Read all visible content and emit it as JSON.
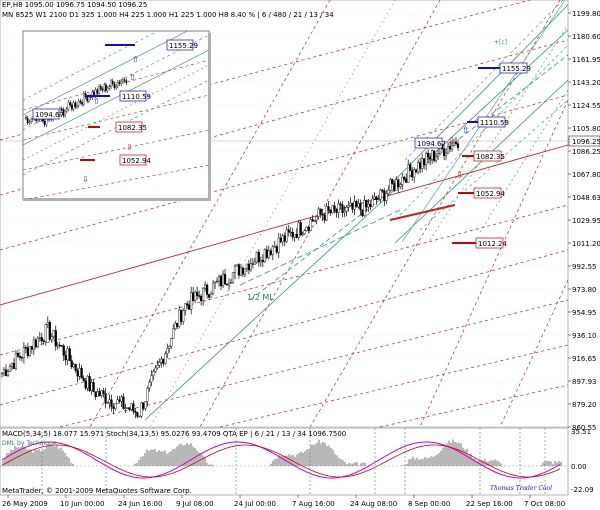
{
  "header": {
    "line1": "EP,H8  1095.00  1096.75  1094.50  1096.25",
    "line2": "MN  8525    W1  2100    D1  325    1.000    H4  225    1.000    H1  225    1.000    H8  8.40 %   |  6 / 480 / 21 / 13 / 34"
  },
  "price_axis": {
    "labels": [
      "1199.80",
      "1180.60",
      "1161.95",
      "1143.20",
      "1124.55",
      "1105.80",
      "1086.25",
      "1067.80",
      "1048.63",
      "1029.95",
      "1011.20",
      "992.55",
      "973.80",
      "954.95",
      "936.10",
      "916.65",
      "897.93",
      "879.20",
      "860.55"
    ],
    "current_price": "1096.25"
  },
  "time_axis": {
    "labels": [
      "26 May 2009",
      "10 Jun 00:00",
      "24 Jun 16:00",
      "9 Jul 08:00",
      "24 Jul 00:00",
      "7 Aug 16:00",
      "24 Aug 08:00",
      "8 Sep 00:00",
      "22 Sep 16:00",
      "7 Oct 08:00"
    ]
  },
  "price_boxes": [
    {
      "text": "1155.29",
      "color": "#1010c0"
    },
    {
      "text": "1110.59",
      "color": "#1010c0"
    },
    {
      "text": "1094.67",
      "color": "#1010c0"
    },
    {
      "text": "1082.35",
      "color": "#d00000"
    },
    {
      "text": "1052.94",
      "color": "#d00000"
    },
    {
      "text": "1012.24",
      "color": "#d00000"
    }
  ],
  "inset_boxes": [
    {
      "text": "1155.29",
      "color": "#1010c0"
    },
    {
      "text": "1110.59",
      "color": "#1010c0"
    },
    {
      "text": "1094.67",
      "color": "#1010c0"
    },
    {
      "text": "1082.35",
      "color": "#d00000"
    },
    {
      "text": "1052.94",
      "color": "#d00000"
    }
  ],
  "annotations": {
    "median_line": "1/2 ML",
    "top_label": "+[c]"
  },
  "indicator": {
    "header": "MACD(5,34,5) 18.077 15.971    Stoch(34,13,5) 95.0276 93.4709    QTA EP    | 6 / 21 / 13 / 34 1096.7500",
    "subheader": "DML  by  Technique",
    "axis_labels": [
      "35.51",
      "0.00",
      "-22.09"
    ],
    "copyright": "MetaTrader, © 2001-2009 MetaQuotes Software Corp.",
    "watermark": "Thomas Trader Cool"
  },
  "colors": {
    "bull_channel": "#2a9a7a",
    "red_fan": "#cc2020",
    "up_arrow": "#1010c0",
    "down_arrow": "#d00000"
  },
  "chart_data": {
    "type": "line",
    "title": "",
    "xlabel": "",
    "ylabel": "",
    "ylim": [
      860.55,
      1199.8
    ],
    "x": [
      "26 May 2009",
      "10 Jun",
      "24 Jun",
      "9 Jul",
      "24 Jul",
      "7 Aug",
      "24 Aug",
      "8 Sep",
      "22 Sep",
      "7 Oct",
      "Oct"
    ],
    "series": [
      {
        "values": [
          905,
          940,
          890,
          872,
          960,
          985,
          1010,
          1035,
          1040,
          1072,
          1096
        ]
      }
    ]
  }
}
